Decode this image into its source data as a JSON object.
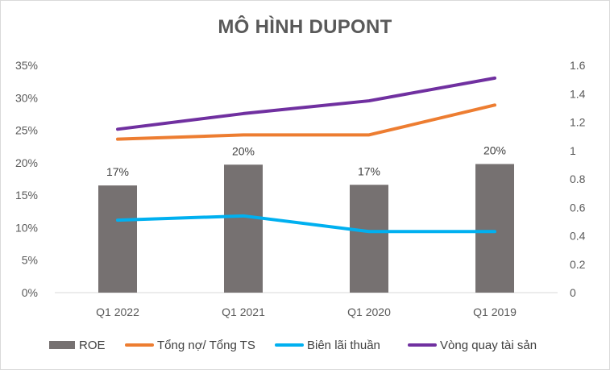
{
  "chart_data": {
    "type": "bar",
    "title": "MÔ HÌNH DUPONT",
    "categories": [
      "Q1 2022",
      "Q1 2021",
      "Q1 2020",
      "Q1 2019"
    ],
    "bar_series": {
      "name": "ROE",
      "values": [
        0.165,
        0.197,
        0.166,
        0.198
      ],
      "data_labels": [
        "17%",
        "20%",
        "17%",
        "20%"
      ],
      "color": "#767171",
      "axis": "left"
    },
    "line_series": [
      {
        "name": "Tổng nợ/ Tổng TS",
        "values": [
          1.08,
          1.11,
          1.11,
          1.32
        ],
        "color": "#ED7D31",
        "axis": "right"
      },
      {
        "name": "Biên lãi thuần",
        "values": [
          0.51,
          0.54,
          0.43,
          0.43
        ],
        "color": "#00B0F0",
        "axis": "right"
      },
      {
        "name": "Vòng quay tài sản",
        "values": [
          1.15,
          1.26,
          1.35,
          1.51
        ],
        "color": "#7030A0",
        "axis": "right"
      }
    ],
    "y_left": {
      "min": 0,
      "max": 0.35,
      "ticks": [
        "0%",
        "5%",
        "10%",
        "15%",
        "20%",
        "25%",
        "30%",
        "35%"
      ]
    },
    "y_right": {
      "min": 0,
      "max": 1.6,
      "ticks": [
        "0",
        "0.2",
        "0.4",
        "0.6",
        "0.8",
        "1",
        "1.2",
        "1.4",
        "1.6"
      ]
    },
    "grid": false,
    "legend_position": "bottom"
  }
}
